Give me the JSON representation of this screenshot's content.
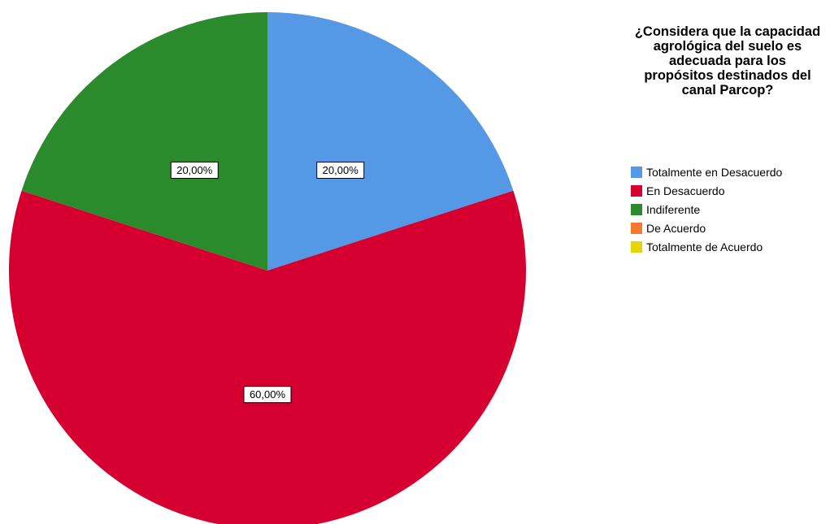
{
  "chart_data": {
    "type": "pie",
    "title": "¿Considera que la capacidad agrológica del suelo es adecuada para los propósitos destinados del canal Parcop?",
    "legend_position": "right",
    "categories": [
      "Totalmente en Desacuerdo",
      "En Desacuerdo",
      "Indiferente",
      "De Acuerdo",
      "Totalmente de Acuerdo"
    ],
    "values": [
      20,
      60,
      20,
      0,
      0
    ],
    "labels": [
      "20,00%",
      "60,00%",
      "20,00%",
      "",
      ""
    ],
    "colors": [
      "#5599e6",
      "#d5002f",
      "#2b8a2b",
      "#f47832",
      "#e4d40a"
    ]
  }
}
